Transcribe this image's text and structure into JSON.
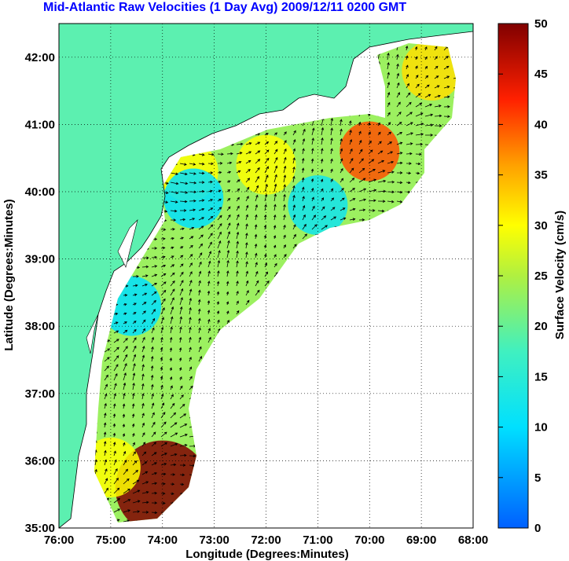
{
  "title": "Mid-Atlantic Raw Velocities (1 Day Avg) 2009/12/11 0200 GMT",
  "chart_data": {
    "type": "vector-field-map",
    "xlabel": "Longitude (Degrees:Minutes)",
    "ylabel": "Latitude (Degrees:Minutes)",
    "xlim": [
      -76,
      -68
    ],
    "ylim": [
      35,
      42.5
    ],
    "x_ticks": [
      "76:00",
      "75:00",
      "74:00",
      "73:00",
      "72:00",
      "71:00",
      "70:00",
      "69:00",
      "68:00"
    ],
    "y_ticks": [
      "35:00",
      "36:00",
      "37:00",
      "38:00",
      "39:00",
      "40:00",
      "41:00",
      "42:00"
    ],
    "grid": "dotted",
    "colorbar": {
      "label": "Surface Velocity (cm/s)",
      "range": [
        0,
        50
      ],
      "ticks": [
        "0",
        "5",
        "10",
        "15",
        "20",
        "25",
        "30",
        "35",
        "40",
        "45",
        "50"
      ],
      "colormap": "jet"
    },
    "colors": {
      "land": "#5cf0b0",
      "water_bg": "#ffffff",
      "title": "#0000ff"
    },
    "hotspots": [
      {
        "lon": -74.0,
        "lat": 35.6,
        "speed": 50
      },
      {
        "lon": -70.0,
        "lat": 40.6,
        "speed": 40
      },
      {
        "lon": -72.0,
        "lat": 40.4,
        "speed": 30
      },
      {
        "lon": -73.5,
        "lat": 40.3,
        "speed": 30
      },
      {
        "lon": -68.8,
        "lat": 41.8,
        "speed": 32
      },
      {
        "lon": -75.0,
        "lat": 35.9,
        "speed": 30
      },
      {
        "lon": -74.6,
        "lat": 38.3,
        "speed": 10
      },
      {
        "lon": -73.4,
        "lat": 39.9,
        "speed": 10
      },
      {
        "lon": -71.0,
        "lat": 39.8,
        "speed": 12
      }
    ]
  }
}
